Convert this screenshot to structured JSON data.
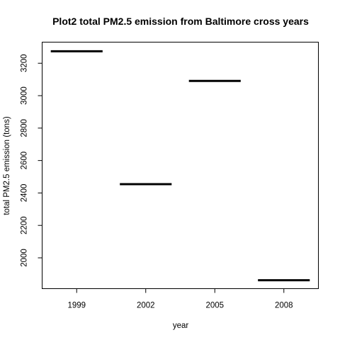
{
  "chart_data": {
    "type": "bar",
    "title": "Plot2 total PM2.5 emission from Baltimore cross years",
    "xlabel": "year",
    "ylabel": "total PM2.5 emission (tons)",
    "categories": [
      "1999",
      "2002",
      "2005",
      "2008"
    ],
    "values": [
      3274,
      2454,
      3091,
      1862
    ],
    "ylim": [
      1810,
      3330
    ],
    "yticks": [
      2000,
      2200,
      2400,
      2600,
      2800,
      3000,
      3200
    ],
    "grid": false,
    "legend": "none",
    "colors": {
      "mark": "#000000",
      "axis": "#000000",
      "background": "#ffffff"
    }
  }
}
